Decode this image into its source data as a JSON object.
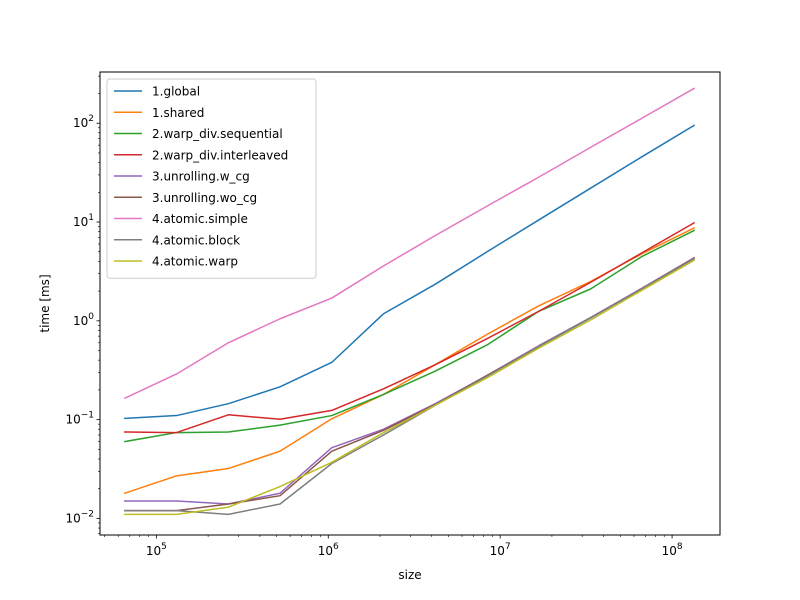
{
  "chart_data": {
    "type": "line",
    "title": "",
    "xlabel": "size",
    "ylabel": "time [ms]",
    "xscale": "log",
    "yscale": "log",
    "xlim": [
      47000,
      190000000
    ],
    "ylim": [
      0.0068,
      330
    ],
    "grid": false,
    "legend_position": "top-left",
    "x": [
      65536,
      131072,
      262144,
      524288,
      1048576,
      2097152,
      4194304,
      8388608,
      16777216,
      33554432,
      67108864,
      134217728
    ],
    "x_tick_labels": [
      {
        "value": 100000,
        "base": "10",
        "exp": "5"
      },
      {
        "value": 1000000,
        "base": "10",
        "exp": "6"
      },
      {
        "value": 10000000,
        "base": "10",
        "exp": "7"
      },
      {
        "value": 100000000,
        "base": "10",
        "exp": "8"
      }
    ],
    "y_tick_labels": [
      {
        "value": 0.01,
        "base": "10",
        "exp": "−2"
      },
      {
        "value": 0.1,
        "base": "10",
        "exp": "−1"
      },
      {
        "value": 1,
        "base": "10",
        "exp": "0"
      },
      {
        "value": 10,
        "base": "10",
        "exp": "1"
      },
      {
        "value": 100,
        "base": "10",
        "exp": "2"
      }
    ],
    "series": [
      {
        "name": "1.global",
        "color": "#1f77b4",
        "values": [
          0.103,
          0.11,
          0.145,
          0.215,
          0.38,
          1.18,
          2.35,
          5.0,
          10.5,
          22.0,
          46.0,
          95.0
        ]
      },
      {
        "name": "1.shared",
        "color": "#ff7f0e",
        "values": [
          0.018,
          0.027,
          0.032,
          0.048,
          0.102,
          0.18,
          0.36,
          0.73,
          1.42,
          2.5,
          4.8,
          8.7
        ]
      },
      {
        "name": "2.warp_div.sequential",
        "color": "#2ca02c",
        "values": [
          0.06,
          0.074,
          0.075,
          0.088,
          0.11,
          0.18,
          0.31,
          0.57,
          1.25,
          2.1,
          4.5,
          8.2
        ]
      },
      {
        "name": "2.warp_div.interleaved",
        "color": "#d62728",
        "values": [
          0.075,
          0.074,
          0.112,
          0.101,
          0.124,
          0.205,
          0.36,
          0.66,
          1.25,
          2.45,
          4.9,
          9.8
        ]
      },
      {
        "name": "3.unrolling.w_cg",
        "color": "#9467bd",
        "values": [
          0.015,
          0.015,
          0.014,
          0.018,
          0.052,
          0.08,
          0.145,
          0.28,
          0.56,
          1.08,
          2.15,
          4.35
        ]
      },
      {
        "name": "3.unrolling.wo_cg",
        "color": "#8c564b",
        "values": [
          0.012,
          0.012,
          0.014,
          0.017,
          0.048,
          0.078,
          0.142,
          0.28,
          0.55,
          1.07,
          2.13,
          4.3
        ]
      },
      {
        "name": "4.atomic.simple",
        "color": "#e377c2",
        "values": [
          0.165,
          0.29,
          0.6,
          1.05,
          1.7,
          3.6,
          7.3,
          14.5,
          28.5,
          57.0,
          113.0,
          225.0
        ]
      },
      {
        "name": "4.atomic.block",
        "color": "#7f7f7f",
        "values": [
          0.012,
          0.012,
          0.011,
          0.014,
          0.036,
          0.07,
          0.14,
          0.275,
          0.55,
          1.07,
          2.12,
          4.25
        ]
      },
      {
        "name": "4.atomic.warp",
        "color": "#bcbd22",
        "values": [
          0.011,
          0.011,
          0.013,
          0.021,
          0.037,
          0.074,
          0.14,
          0.265,
          0.53,
          1.02,
          2.05,
          4.1
        ]
      }
    ]
  }
}
